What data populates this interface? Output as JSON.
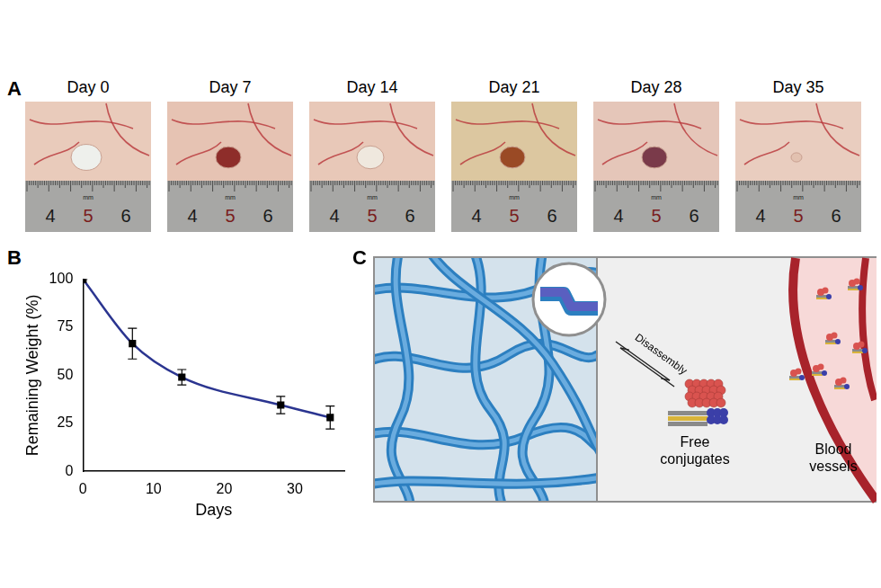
{
  "panel_letters": [
    "A",
    "B",
    "C"
  ],
  "panel_a": {
    "titles": [
      "Day 0",
      "Day 7",
      "Day 14",
      "Day 21",
      "Day 28",
      "Day 35"
    ],
    "ruler_ticks": [
      4,
      5,
      6
    ],
    "ruler_unit": "mm"
  },
  "chart_data": {
    "type": "line",
    "x_label": "Days",
    "y_label": "Remaining Weight (%)",
    "x": [
      0,
      7,
      14,
      28,
      35
    ],
    "values": [
      100,
      66.5,
      49,
      34.5,
      28
    ],
    "errors": [
      0,
      8,
      4,
      4.5,
      6
    ],
    "color": "#2b3590",
    "marker": "square",
    "line_style": "solid",
    "xlim": [
      0,
      37
    ],
    "xticks": [
      0,
      10,
      20,
      30
    ],
    "ylim": [
      0,
      100
    ],
    "yticks": [
      0,
      25,
      50,
      75,
      100
    ],
    "grid": false
  },
  "panel_c": {
    "arrow_label": "Disassembly",
    "cluster_label": "Free conjugates",
    "vessel_label": "Blood vessels"
  }
}
